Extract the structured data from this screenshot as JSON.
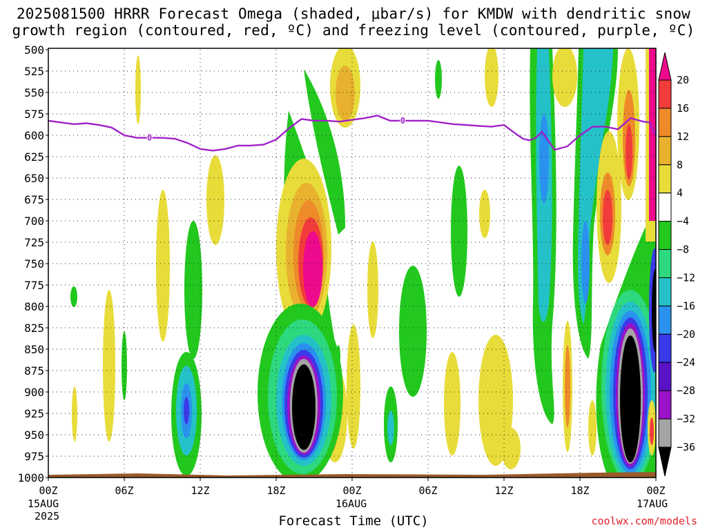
{
  "title_line1": "2025081500 HRRR Forecast Omega (shaded, μbar/s) for KMDW with dendritic snow",
  "title_line2": "growth region (contoured, red, ºC) and freezing level (contoured, purple, ºC)",
  "xaxis_title": "Forecast Time (UTC)",
  "credit": "coolwx.com/models",
  "date_labels": {
    "start_day": "15AUG",
    "start_year": "2025",
    "mid_day": "16AUG",
    "end_day": "17AUG"
  },
  "chart_data": {
    "type": "heatmap",
    "title": "2025081500 HRRR Forecast Omega (shaded, μbar/s) for KMDW",
    "xlabel": "Forecast Time (UTC)",
    "ylabel": "",
    "y_ticks": [
      "500",
      "525",
      "550",
      "575",
      "600",
      "625",
      "650",
      "675",
      "700",
      "725",
      "750",
      "775",
      "800",
      "825",
      "850",
      "875",
      "900",
      "925",
      "950",
      "975",
      "1000"
    ],
    "y_range": [
      500,
      1000
    ],
    "x_ticks": [
      "00Z",
      "06Z",
      "12Z",
      "18Z",
      "00Z",
      "06Z",
      "12Z",
      "18Z",
      "00Z"
    ],
    "x_range_hours": [
      0,
      48
    ],
    "colorbar_ticks": [
      "20",
      "16",
      "12",
      "8",
      "4",
      "−4",
      "−8",
      "−12",
      "−16",
      "−20",
      "−24",
      "−28",
      "−32",
      "−36"
    ],
    "colorbar_colors": [
      "#ee0a8c",
      "#f23c3c",
      "#ee8a2a",
      "#e8b22e",
      "#e8dc3a",
      "#ffffff",
      "#22c81e",
      "#2ed87e",
      "#24c2c8",
      "#2a92ee",
      "#3a3ae8",
      "#5a12c6",
      "#9a12c8",
      "#a4a4a4",
      "#000000"
    ],
    "freezing_level_contour": {
      "label": "0",
      "color": "#a020c8",
      "x_hours": [
        0,
        1,
        2,
        3,
        4,
        5,
        6,
        7,
        8,
        9,
        10,
        11,
        12,
        13,
        14,
        15,
        16,
        17,
        18,
        19,
        20,
        21,
        22,
        23,
        24,
        25,
        26,
        27,
        28,
        29,
        30,
        31,
        32,
        33,
        34,
        35,
        36,
        37,
        37.5,
        38,
        38.5,
        39,
        40,
        41,
        42,
        43,
        44,
        45,
        46,
        47,
        47.5,
        48
      ],
      "pressure_hPa": [
        583,
        585,
        587,
        586,
        588,
        591,
        600,
        603,
        603,
        603,
        604,
        609,
        616,
        618,
        616,
        612,
        612,
        611,
        605,
        592,
        581,
        583,
        583,
        584,
        582,
        580,
        577,
        583,
        583,
        583,
        583,
        585,
        587,
        588,
        589,
        590,
        588,
        599,
        604,
        606,
        603,
        596,
        617,
        613,
        600,
        590,
        590,
        593,
        580,
        584,
        585,
        600
      ]
    }
  }
}
